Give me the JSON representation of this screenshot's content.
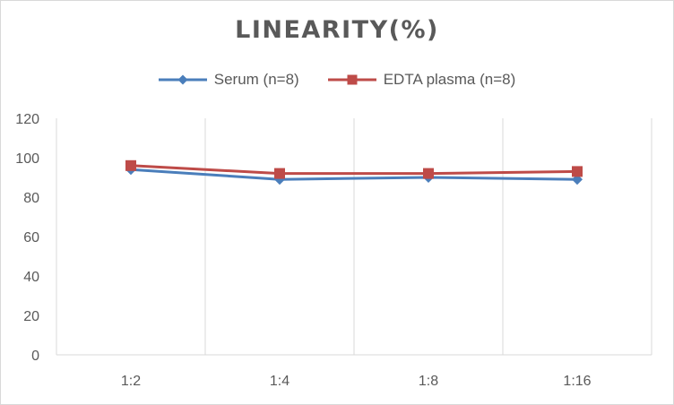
{
  "chart_data": {
    "type": "line",
    "title": "LINEARITY(%)",
    "categories": [
      "1:2",
      "1:4",
      "1:8",
      "1:16"
    ],
    "series": [
      {
        "name": "Serum (n=8)",
        "values": [
          94,
          89,
          90,
          89
        ],
        "color": "#4a7ebb",
        "marker": "diamond"
      },
      {
        "name": "EDTA plasma (n=8)",
        "values": [
          96,
          92,
          92,
          93
        ],
        "color": "#be4b48",
        "marker": "square"
      }
    ],
    "ylim": [
      0,
      120
    ],
    "yticks": [
      0,
      20,
      40,
      60,
      80,
      100,
      120
    ],
    "xlabel": "",
    "ylabel": "",
    "grid": "vertical",
    "legend": "top"
  }
}
